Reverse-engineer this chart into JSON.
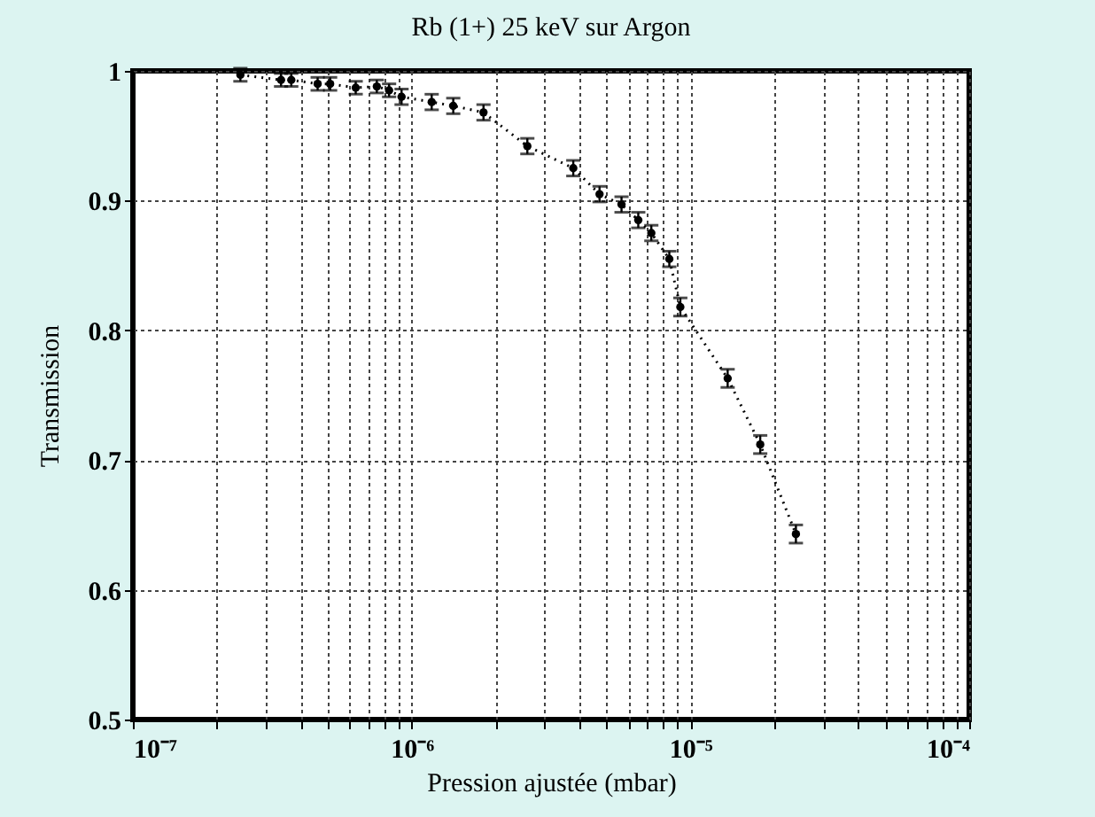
{
  "chart_data": {
    "type": "line",
    "title": "Rb (1+) 25 keV sur Argon",
    "xlabel": "Pression ajustée (mbar)",
    "ylabel": "Transmission",
    "log": "x",
    "series": [
      {
        "color": "#000000",
        "x": [
          2.43e-07,
          3.4e-07,
          3.7e-07,
          4.6e-07,
          5.1e-07,
          6.3e-07,
          7.5e-07,
          8.3e-07,
          9.2e-07,
          1.18e-06,
          1.41e-06,
          1.81e-06,
          2.6e-06,
          3.8e-06,
          4.72e-06,
          5.66e-06,
          6.5e-06,
          7.24e-06,
          8.4e-06,
          9.2e-06,
          1.36e-05,
          1.78e-05,
          2.39e-05
        ],
        "values": [
          0.997,
          0.993,
          0.993,
          0.99,
          0.99,
          0.987,
          0.988,
          0.985,
          0.98,
          0.976,
          0.973,
          0.968,
          0.942,
          0.925,
          0.905,
          0.897,
          0.885,
          0.875,
          0.855,
          0.818,
          0.763,
          0.712,
          0.643
        ],
        "errors": [
          0.005,
          0.005,
          0.005,
          0.005,
          0.005,
          0.005,
          0.005,
          0.005,
          0.006,
          0.006,
          0.006,
          0.006,
          0.006,
          0.006,
          0.006,
          0.006,
          0.006,
          0.006,
          0.006,
          0.007,
          0.007,
          0.007,
          0.007
        ]
      }
    ],
    "xlim": [
      1e-07,
      0.0001
    ],
    "xticks": [
      {
        "value": 1e-07,
        "label": "10⁻⁷"
      },
      {
        "value": 2e-07,
        "label": null
      },
      {
        "value": 3e-07,
        "label": null
      },
      {
        "value": 4e-07,
        "label": null
      },
      {
        "value": 5e-07,
        "label": null
      },
      {
        "value": 6e-07,
        "label": null
      },
      {
        "value": 7e-07,
        "label": null
      },
      {
        "value": 8e-07,
        "label": null
      },
      {
        "value": 9e-07,
        "label": null
      },
      {
        "value": 1e-06,
        "label": "10⁻⁶"
      },
      {
        "value": 2e-06,
        "label": null
      },
      {
        "value": 3e-06,
        "label": null
      },
      {
        "value": 4e-06,
        "label": null
      },
      {
        "value": 5e-06,
        "label": null
      },
      {
        "value": 6e-06,
        "label": null
      },
      {
        "value": 7e-06,
        "label": null
      },
      {
        "value": 8e-06,
        "label": null
      },
      {
        "value": 9e-06,
        "label": null
      },
      {
        "value": 1e-05,
        "label": "10⁻⁵"
      },
      {
        "value": 2e-05,
        "label": null
      },
      {
        "value": 3e-05,
        "label": null
      },
      {
        "value": 4e-05,
        "label": null
      },
      {
        "value": 5e-05,
        "label": null
      },
      {
        "value": 6e-05,
        "label": null
      },
      {
        "value": 7e-05,
        "label": null
      },
      {
        "value": 8e-05,
        "label": null
      },
      {
        "value": 9e-05,
        "label": null
      },
      {
        "value": 0.0001,
        "label": "10⁻⁴"
      }
    ],
    "ylim": [
      0.5,
      1
    ],
    "yticks": [
      0.5,
      0.6,
      0.7,
      0.8,
      0.9,
      1
    ],
    "grid": true,
    "marker": "circle",
    "line_style": "dotted"
  }
}
